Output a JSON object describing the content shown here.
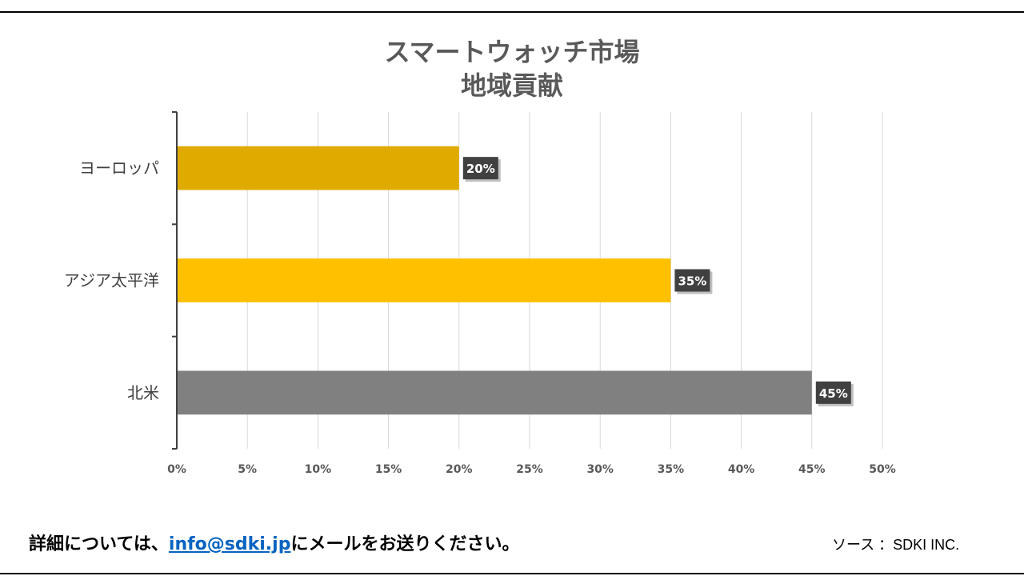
{
  "header": {
    "title_line1": "スマートウォッチ市場",
    "title_line2": "地域貢献"
  },
  "chart_data": {
    "type": "bar",
    "orientation": "horizontal",
    "categories": [
      "ヨーロッパ",
      "アジア太平洋",
      "北米"
    ],
    "values": [
      20,
      35,
      45
    ],
    "value_labels": [
      "20%",
      "35%",
      "45%"
    ],
    "bar_colors": [
      "#e0ab00",
      "#ffc000",
      "#808080"
    ],
    "xlim": [
      0,
      50
    ],
    "x_ticks": [
      "0%",
      "5%",
      "10%",
      "15%",
      "20%",
      "25%",
      "30%",
      "35%",
      "40%",
      "45%",
      "50%"
    ],
    "grid": true,
    "legend": "none"
  },
  "footer": {
    "contact_prefix": "詳細については、",
    "contact_email": "info@sdki.jp",
    "contact_suffix": "にメールをお送りください。",
    "source": "ソース ：SDKI INC."
  }
}
